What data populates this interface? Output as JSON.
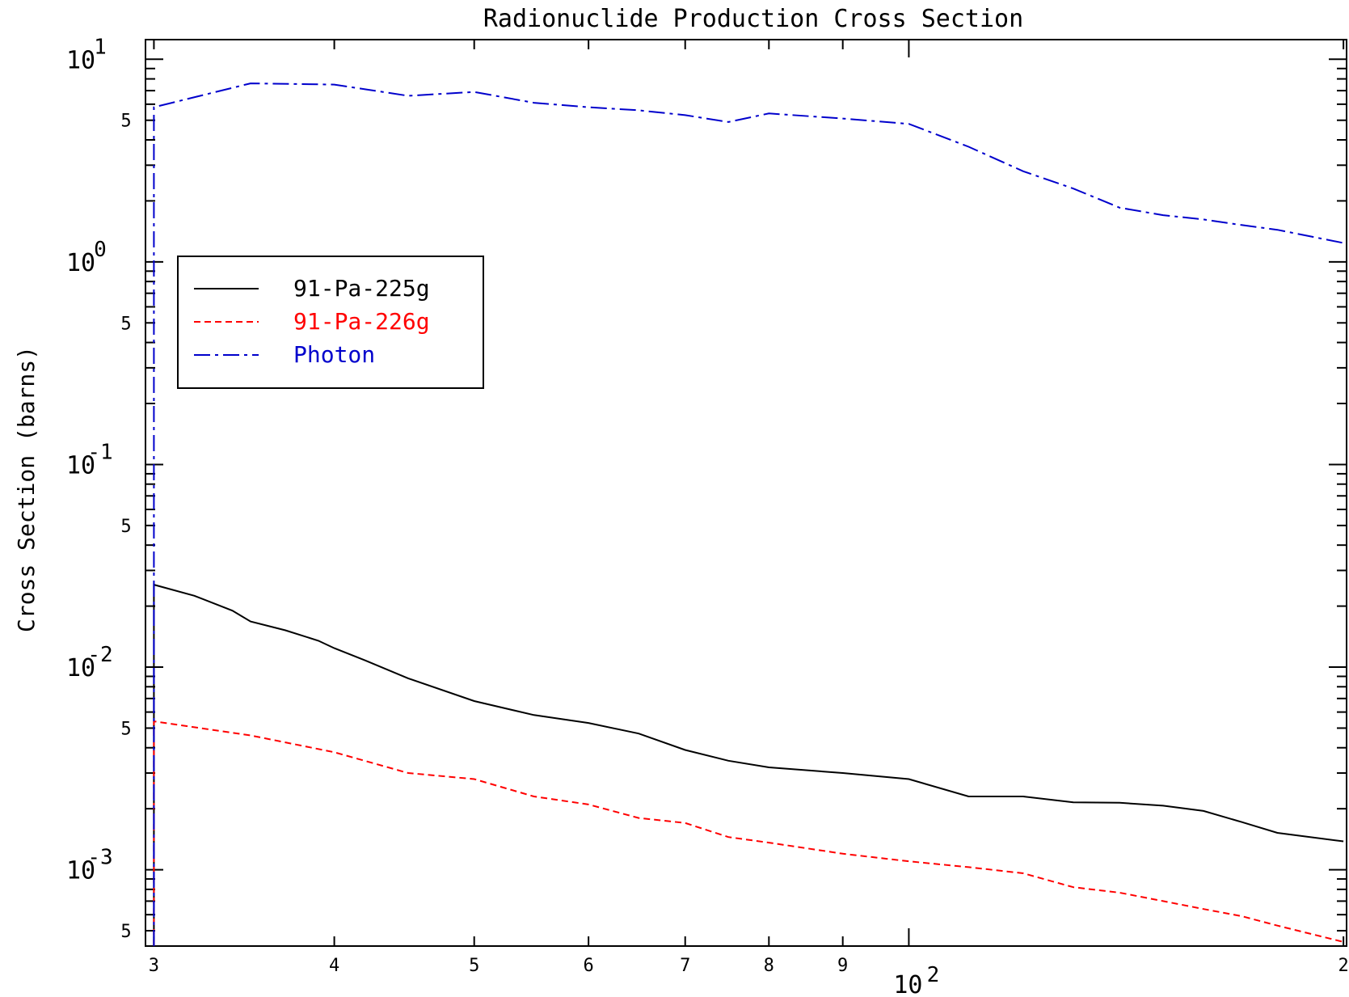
{
  "chart_data": {
    "type": "line",
    "title": "Radionuclide Production Cross Section",
    "xlabel": "",
    "ylabel": "Cross Section (barns)",
    "x_scale": "log",
    "y_scale": "log",
    "xlim": [
      29.6,
      201
    ],
    "ylim": [
      0.00042,
      12.5
    ],
    "x_ticks": [
      {
        "value": 30,
        "label": "3"
      },
      {
        "value": 40,
        "label": "4"
      },
      {
        "value": 50,
        "label": "5"
      },
      {
        "value": 60,
        "label": "6"
      },
      {
        "value": 70,
        "label": "7"
      },
      {
        "value": 80,
        "label": "8"
      },
      {
        "value": 90,
        "label": "9"
      },
      {
        "value": 200,
        "label": "2"
      }
    ],
    "x_decade_label": {
      "base": "10",
      "exp": "2"
    },
    "y_decades": [
      {
        "value": 10,
        "base": "10",
        "exp": "1"
      },
      {
        "value": 1,
        "base": "10",
        "exp": "0"
      },
      {
        "value": 0.1,
        "base": "10",
        "exp": "-1"
      },
      {
        "value": 0.01,
        "base": "10",
        "exp": "-2"
      },
      {
        "value": 0.001,
        "base": "10",
        "exp": "-3"
      }
    ],
    "y_minor_labels": [
      {
        "value": 5,
        "label": "5"
      },
      {
        "value": 0.5,
        "label": "5"
      },
      {
        "value": 0.05,
        "label": "5"
      },
      {
        "value": 0.005,
        "label": "5"
      },
      {
        "value": 0.0005,
        "label": "5"
      }
    ],
    "legend": {
      "position": "left, upper-middle",
      "entries": [
        "91-Pa-225g",
        "91-Pa-226g",
        "Photon"
      ]
    },
    "series": [
      {
        "name": "91-Pa-225g",
        "color": "#000000",
        "dash": "solid",
        "x": [
          30,
          32,
          34,
          35,
          37,
          39,
          40,
          42,
          45,
          50,
          55,
          60,
          65,
          70,
          75,
          80,
          90,
          100,
          110,
          120,
          130,
          140,
          150,
          160,
          170,
          180,
          200
        ],
        "y": [
          0.0255,
          0.0225,
          0.019,
          0.0168,
          0.0152,
          0.0135,
          0.0124,
          0.0108,
          0.0088,
          0.0068,
          0.0058,
          0.0053,
          0.0047,
          0.0039,
          0.00345,
          0.0032,
          0.003,
          0.0028,
          0.0023,
          0.0023,
          0.00215,
          0.00214,
          0.00207,
          0.00195,
          0.00172,
          0.00152,
          0.00138
        ]
      },
      {
        "name": "91-Pa-226g",
        "color": "#ff0000",
        "dash": "dashed",
        "x": [
          30,
          35,
          40,
          45,
          50,
          55,
          60,
          65,
          70,
          75,
          80,
          90,
          100,
          110,
          120,
          130,
          140,
          150,
          160,
          170,
          180,
          200
        ],
        "y": [
          0.0054,
          0.0046,
          0.0038,
          0.003,
          0.0028,
          0.0023,
          0.0021,
          0.0018,
          0.0017,
          0.00145,
          0.00136,
          0.0012,
          0.0011,
          0.00103,
          0.00096,
          0.00082,
          0.00077,
          0.0007,
          0.00064,
          0.00059,
          0.00053,
          0.00044
        ]
      },
      {
        "name": "Photon",
        "color": "#0000cc",
        "dash": "dashdot",
        "x": [
          30,
          35,
          40,
          45,
          50,
          55,
          60,
          65,
          70,
          75,
          80,
          90,
          100,
          110,
          120,
          130,
          140,
          150,
          160,
          170,
          180,
          200
        ],
        "y": [
          5.8,
          7.6,
          7.5,
          6.6,
          6.9,
          6.1,
          5.8,
          5.6,
          5.3,
          4.9,
          5.4,
          5.1,
          4.8,
          3.7,
          2.8,
          2.3,
          1.85,
          1.7,
          1.62,
          1.52,
          1.44,
          1.24
        ]
      }
    ],
    "vertical_segment_x": 30
  }
}
